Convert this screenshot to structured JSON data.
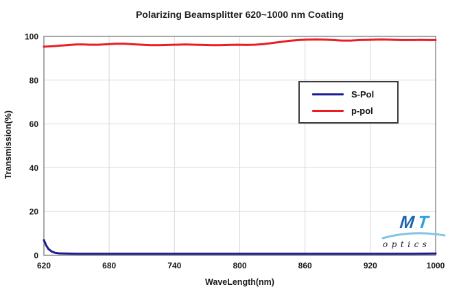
{
  "chart_data": {
    "type": "line",
    "title": "Polarizing Beamsplitter 620~1000 nm Coating",
    "xlabel": "WaveLength(nm)",
    "ylabel": "Transmission(%)",
    "x_ticks": [
      620,
      680,
      740,
      800,
      860,
      920,
      1000
    ],
    "y_ticks": [
      0,
      20,
      40,
      60,
      80,
      100
    ],
    "ylim": [
      0,
      100
    ],
    "grid": true,
    "grid_color": "#d9d9d9",
    "border_color": "#8c8c8c",
    "legend_position": "inset upper right",
    "series": [
      {
        "name": "S-Pol",
        "color": "#1c1c90",
        "points": [
          [
            620,
            7.0
          ],
          [
            622,
            4.6
          ],
          [
            624,
            3.0
          ],
          [
            627,
            1.8
          ],
          [
            630,
            1.2
          ],
          [
            634,
            0.9
          ],
          [
            640,
            0.8
          ],
          [
            650,
            0.7
          ],
          [
            670,
            0.7
          ],
          [
            700,
            0.7
          ],
          [
            740,
            0.7
          ],
          [
            780,
            0.7
          ],
          [
            820,
            0.7
          ],
          [
            860,
            0.7
          ],
          [
            900,
            0.7
          ],
          [
            940,
            0.7
          ],
          [
            970,
            0.7
          ],
          [
            1000,
            0.8
          ]
        ]
      },
      {
        "name": "p-pol",
        "color": "#ec1c24",
        "points": [
          [
            620,
            95.3
          ],
          [
            628,
            95.5
          ],
          [
            636,
            95.8
          ],
          [
            644,
            96.1
          ],
          [
            650,
            96.3
          ],
          [
            656,
            96.3
          ],
          [
            663,
            96.2
          ],
          [
            670,
            96.2
          ],
          [
            678,
            96.4
          ],
          [
            686,
            96.6
          ],
          [
            694,
            96.6
          ],
          [
            702,
            96.4
          ],
          [
            710,
            96.2
          ],
          [
            718,
            96.0
          ],
          [
            726,
            96.0
          ],
          [
            734,
            96.1
          ],
          [
            742,
            96.2
          ],
          [
            750,
            96.3
          ],
          [
            758,
            96.2
          ],
          [
            766,
            96.1
          ],
          [
            774,
            96.0
          ],
          [
            782,
            96.0
          ],
          [
            790,
            96.1
          ],
          [
            798,
            96.2
          ],
          [
            806,
            96.1
          ],
          [
            814,
            96.2
          ],
          [
            822,
            96.5
          ],
          [
            830,
            97.0
          ],
          [
            838,
            97.5
          ],
          [
            846,
            98.0
          ],
          [
            854,
            98.3
          ],
          [
            862,
            98.5
          ],
          [
            870,
            98.6
          ],
          [
            878,
            98.5
          ],
          [
            886,
            98.3
          ],
          [
            894,
            98.1
          ],
          [
            902,
            98.1
          ],
          [
            910,
            98.3
          ],
          [
            918,
            98.4
          ],
          [
            926,
            98.5
          ],
          [
            934,
            98.6
          ],
          [
            942,
            98.5
          ],
          [
            950,
            98.4
          ],
          [
            958,
            98.3
          ],
          [
            966,
            98.3
          ],
          [
            974,
            98.3
          ],
          [
            982,
            98.4
          ],
          [
            990,
            98.3
          ],
          [
            1000,
            98.3
          ]
        ]
      }
    ]
  },
  "logo": {
    "m": "M",
    "t": "T",
    "text": "optics",
    "m_color": "#1e63b0",
    "t_color": "#2aa0dd",
    "swoosh_color": "#85c2e8"
  }
}
